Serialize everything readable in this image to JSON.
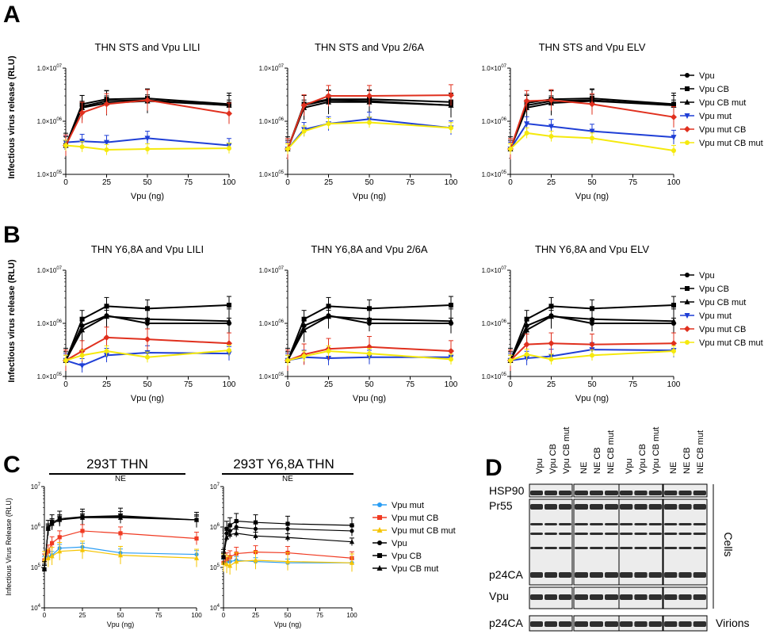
{
  "panels": {
    "A": {
      "letter": "A",
      "ylabel": "Infectious virus release (RLU)",
      "yticks": [
        "1.0×10⁰⁵",
        "1.0×10⁰⁶",
        "1.0×10⁰⁷"
      ],
      "legend": [
        "Vpu",
        "Vpu CB",
        "Vpu CB mut",
        "Vpu mut",
        "Vpu mut CB",
        "Vpu mut CB mut"
      ]
    },
    "B": {
      "letter": "B",
      "ylabel": "Infectious virus release (RLU)",
      "legend": [
        "Vpu",
        "Vpu CB",
        "Vpu CB mut",
        "Vpu mut",
        "Vpu mut CB",
        "Vpu mut CB mut"
      ]
    },
    "C": {
      "letter": "C",
      "header_left": "293T THN",
      "header_right": "293T Y6,8A THN",
      "ne_label": "NE",
      "ylabel": "Infectious Virus Release (RLU)",
      "legend": [
        "Vpu mut",
        "Vpu mut CB",
        "Vpu mut CB mut",
        "Vpu",
        "Vpu CB",
        "Vpu CB mut"
      ]
    },
    "D": {
      "letter": "D",
      "lane_labels": [
        "Vpu",
        "Vpu CB",
        "Vpu CB mut",
        "NE",
        "NE CB",
        "NE CB mut",
        "Vpu",
        "Vpu CB",
        "Vpu CB mut",
        "NE",
        "NE CB",
        "NE CB mut"
      ],
      "row_labels": [
        "HSP90",
        "Pr55",
        "p24CA",
        "Vpu",
        "p24CA"
      ],
      "cells_label": "Cells",
      "virions_label": "Virions",
      "group_labels": [
        "293T THN",
        "293T Y6,8A"
      ]
    }
  },
  "chart_data": [
    {
      "id": "A1",
      "type": "line",
      "title": "THN STS and Vpu LILI",
      "xlabel": "Vpu (ng)",
      "ylabel": "Infectious virus release (RLU)",
      "yscale": "log",
      "ylim": [
        100000,
        10000000
      ],
      "xlim": [
        0,
        100
      ],
      "xticks": [
        0,
        25,
        50,
        75,
        100
      ],
      "yticklabels": [
        "1.0×10^05",
        "1.0×10^06",
        "1.0×10^07"
      ],
      "x": [
        0,
        10,
        25,
        50,
        100
      ],
      "series": [
        {
          "name": "Vpu",
          "color": "#000000",
          "marker": "circle",
          "values": [
            350000,
            1900000,
            2400000,
            2500000,
            2000000
          ]
        },
        {
          "name": "Vpu CB",
          "color": "#000000",
          "marker": "square",
          "values": [
            350000,
            2100000,
            2600000,
            2700000,
            2100000
          ]
        },
        {
          "name": "Vpu CB mut",
          "color": "#000000",
          "marker": "triangle",
          "values": [
            350000,
            1800000,
            2200000,
            2400000,
            2000000
          ]
        },
        {
          "name": "Vpu mut",
          "color": "#1f3fd6",
          "marker": "triangle-down",
          "values": [
            400000,
            420000,
            400000,
            480000,
            350000
          ]
        },
        {
          "name": "Vpu mut CB",
          "color": "#e0301e",
          "marker": "diamond",
          "values": [
            350000,
            1450000,
            2100000,
            2500000,
            1400000
          ]
        },
        {
          "name": "Vpu mut CB mut",
          "color": "#f5e90d",
          "marker": "circle",
          "values": [
            350000,
            330000,
            290000,
            300000,
            310000
          ]
        }
      ]
    },
    {
      "id": "A2",
      "type": "line",
      "title": "THN STS and Vpu 2/6A",
      "xlabel": "Vpu (ng)",
      "yscale": "log",
      "ylim": [
        100000,
        10000000
      ],
      "xlim": [
        0,
        100
      ],
      "xticks": [
        0,
        25,
        50,
        75,
        100
      ],
      "yticklabels": [
        "1.0×10^05",
        "1.0×10^06",
        "1.0×10^07"
      ],
      "x": [
        0,
        10,
        25,
        50,
        100
      ],
      "series": [
        {
          "name": "Vpu",
          "color": "#000000",
          "marker": "circle",
          "values": [
            300000,
            2000000,
            2500000,
            2400000,
            2000000
          ]
        },
        {
          "name": "Vpu CB",
          "color": "#000000",
          "marker": "square",
          "values": [
            300000,
            2100000,
            2600000,
            2600000,
            2300000
          ]
        },
        {
          "name": "Vpu CB mut",
          "color": "#000000",
          "marker": "triangle",
          "values": [
            300000,
            1800000,
            2300000,
            2300000,
            2000000
          ]
        },
        {
          "name": "Vpu mut",
          "color": "#1f3fd6",
          "marker": "triangle-down",
          "values": [
            300000,
            700000,
            900000,
            1100000,
            750000
          ]
        },
        {
          "name": "Vpu mut CB",
          "color": "#e0301e",
          "marker": "diamond",
          "values": [
            300000,
            2000000,
            3000000,
            3000000,
            3100000
          ]
        },
        {
          "name": "Vpu mut CB mut",
          "color": "#f5e90d",
          "marker": "circle",
          "values": [
            300000,
            650000,
            900000,
            950000,
            750000
          ]
        }
      ]
    },
    {
      "id": "A3",
      "type": "line",
      "title": "THN STS and Vpu ELV",
      "xlabel": "Vpu (ng)",
      "yscale": "log",
      "ylim": [
        100000,
        10000000
      ],
      "xlim": [
        0,
        100
      ],
      "xticks": [
        0,
        25,
        50,
        75,
        100
      ],
      "yticklabels": [
        "1.0×10^05",
        "1.0×10^06",
        "1.0×10^07"
      ],
      "x": [
        0,
        10,
        25,
        50,
        100
      ],
      "series": [
        {
          "name": "Vpu",
          "color": "#000000",
          "marker": "circle",
          "values": [
            300000,
            2000000,
            2400000,
            2500000,
            2000000
          ]
        },
        {
          "name": "Vpu CB",
          "color": "#000000",
          "marker": "square",
          "values": [
            300000,
            2200000,
            2600000,
            2700000,
            2100000
          ]
        },
        {
          "name": "Vpu CB mut",
          "color": "#000000",
          "marker": "triangle",
          "values": [
            300000,
            1800000,
            2200000,
            2400000,
            2000000
          ]
        },
        {
          "name": "Vpu mut",
          "color": "#1f3fd6",
          "marker": "triangle-down",
          "values": [
            300000,
            900000,
            800000,
            650000,
            500000
          ]
        },
        {
          "name": "Vpu mut CB",
          "color": "#e0301e",
          "marker": "diamond",
          "values": [
            300000,
            2400000,
            2500000,
            2100000,
            1200000
          ]
        },
        {
          "name": "Vpu mut CB mut",
          "color": "#f5e90d",
          "marker": "circle",
          "values": [
            300000,
            600000,
            520000,
            480000,
            280000
          ]
        }
      ]
    },
    {
      "id": "B1",
      "type": "line",
      "title": "THN Y6,8A and Vpu LILI",
      "xlabel": "Vpu (ng)",
      "ylabel": "Infectious virus release (RLU)",
      "yscale": "log",
      "ylim": [
        100000,
        10000000
      ],
      "xlim": [
        0,
        100
      ],
      "xticks": [
        0,
        25,
        50,
        75,
        100
      ],
      "yticklabels": [
        "1.0×10^05",
        "1.0×10^06",
        "1.0×10^07"
      ],
      "x": [
        0,
        10,
        25,
        50,
        100
      ],
      "series": [
        {
          "name": "Vpu",
          "color": "#000000",
          "marker": "circle",
          "values": [
            200000,
            900000,
            1400000,
            1000000,
            1000000
          ]
        },
        {
          "name": "Vpu CB",
          "color": "#000000",
          "marker": "square",
          "values": [
            200000,
            1200000,
            2100000,
            1900000,
            2200000
          ]
        },
        {
          "name": "Vpu CB mut",
          "color": "#000000",
          "marker": "triangle",
          "values": [
            200000,
            750000,
            1350000,
            1200000,
            1100000
          ]
        },
        {
          "name": "Vpu mut",
          "color": "#1f3fd6",
          "marker": "triangle-down",
          "values": [
            200000,
            160000,
            250000,
            280000,
            270000
          ]
        },
        {
          "name": "Vpu mut CB",
          "color": "#e0301e",
          "marker": "diamond",
          "values": [
            200000,
            300000,
            540000,
            500000,
            420000
          ]
        },
        {
          "name": "Vpu mut CB mut",
          "color": "#f5e90d",
          "marker": "circle",
          "values": [
            200000,
            250000,
            300000,
            230000,
            310000
          ]
        }
      ]
    },
    {
      "id": "B2",
      "type": "line",
      "title": "THN Y6,8A and Vpu 2/6A",
      "xlabel": "Vpu (ng)",
      "yscale": "log",
      "ylim": [
        100000,
        10000000
      ],
      "xlim": [
        0,
        100
      ],
      "xticks": [
        0,
        25,
        50,
        75,
        100
      ],
      "yticklabels": [
        "1.0×10^05",
        "1.0×10^06",
        "1.0×10^07"
      ],
      "x": [
        0,
        10,
        25,
        50,
        100
      ],
      "series": [
        {
          "name": "Vpu",
          "color": "#000000",
          "marker": "circle",
          "values": [
            200000,
            900000,
            1400000,
            1000000,
            1000000
          ]
        },
        {
          "name": "Vpu CB",
          "color": "#000000",
          "marker": "square",
          "values": [
            200000,
            1200000,
            2100000,
            1900000,
            2200000
          ]
        },
        {
          "name": "Vpu CB mut",
          "color": "#000000",
          "marker": "triangle",
          "values": [
            200000,
            750000,
            1350000,
            1200000,
            1100000
          ]
        },
        {
          "name": "Vpu mut",
          "color": "#1f3fd6",
          "marker": "triangle-down",
          "values": [
            200000,
            230000,
            220000,
            230000,
            230000
          ]
        },
        {
          "name": "Vpu mut CB",
          "color": "#e0301e",
          "marker": "diamond",
          "values": [
            200000,
            260000,
            330000,
            360000,
            300000
          ]
        },
        {
          "name": "Vpu mut CB mut",
          "color": "#f5e90d",
          "marker": "circle",
          "values": [
            200000,
            240000,
            300000,
            270000,
            210000
          ]
        }
      ]
    },
    {
      "id": "B3",
      "type": "line",
      "title": "THN Y6,8A and Vpu ELV",
      "xlabel": "Vpu (ng)",
      "yscale": "log",
      "ylim": [
        100000,
        10000000
      ],
      "xlim": [
        0,
        100
      ],
      "xticks": [
        0,
        25,
        50,
        75,
        100
      ],
      "yticklabels": [
        "1.0×10^05",
        "1.0×10^06",
        "1.0×10^07"
      ],
      "x": [
        0,
        10,
        25,
        50,
        100
      ],
      "series": [
        {
          "name": "Vpu",
          "color": "#000000",
          "marker": "circle",
          "values": [
            200000,
            900000,
            1400000,
            1000000,
            1000000
          ]
        },
        {
          "name": "Vpu CB",
          "color": "#000000",
          "marker": "square",
          "values": [
            200000,
            1200000,
            2100000,
            1900000,
            2200000
          ]
        },
        {
          "name": "Vpu CB mut",
          "color": "#000000",
          "marker": "triangle",
          "values": [
            200000,
            750000,
            1350000,
            1200000,
            1100000
          ]
        },
        {
          "name": "Vpu mut",
          "color": "#1f3fd6",
          "marker": "triangle-down",
          "values": [
            200000,
            220000,
            240000,
            320000,
            310000
          ]
        },
        {
          "name": "Vpu mut CB",
          "color": "#e0301e",
          "marker": "diamond",
          "values": [
            200000,
            400000,
            420000,
            400000,
            420000
          ]
        },
        {
          "name": "Vpu mut CB mut",
          "color": "#f5e90d",
          "marker": "circle",
          "values": [
            200000,
            260000,
            210000,
            250000,
            300000
          ]
        }
      ]
    },
    {
      "id": "C1",
      "type": "line",
      "title": "NE",
      "xlabel": "Vpu (ng)",
      "ylabel": "Infectious Virus Release (RLU)",
      "yscale": "log",
      "ylim": [
        10000,
        10000000
      ],
      "xlim": [
        0,
        100
      ],
      "xticks": [
        0,
        25,
        50,
        75,
        100
      ],
      "yticklabels": [
        "10^4",
        "10^5",
        "10^6",
        "10^7"
      ],
      "x": [
        0,
        2.5,
        5,
        10,
        25,
        50,
        100
      ],
      "series": [
        {
          "name": "Vpu mut",
          "color": "#2a9df4",
          "marker": "circle",
          "values": [
            150000,
            180000,
            200000,
            300000,
            320000,
            230000,
            210000
          ]
        },
        {
          "name": "Vpu mut CB",
          "color": "#f03a22",
          "marker": "square",
          "values": [
            150000,
            250000,
            400000,
            560000,
            800000,
            700000,
            520000
          ]
        },
        {
          "name": "Vpu mut CB mut",
          "color": "#f5c400",
          "marker": "triangle",
          "values": [
            150000,
            170000,
            190000,
            250000,
            270000,
            200000,
            170000
          ]
        },
        {
          "name": "Vpu",
          "color": "#000000",
          "marker": "circle",
          "values": [
            90000,
            900000,
            1200000,
            1500000,
            1800000,
            1800000,
            1500000
          ]
        },
        {
          "name": "Vpu CB",
          "color": "#000000",
          "marker": "square",
          "values": [
            90000,
            950000,
            1300000,
            1600000,
            1800000,
            1900000,
            1500000
          ]
        },
        {
          "name": "Vpu CB mut",
          "color": "#000000",
          "marker": "triangle",
          "values": [
            90000,
            900000,
            1200000,
            1500000,
            1700000,
            1700000,
            1500000
          ]
        }
      ]
    },
    {
      "id": "C2",
      "type": "line",
      "title": "NE",
      "xlabel": "Vpu (ng)",
      "yscale": "log",
      "ylim": [
        10000,
        10000000
      ],
      "xlim": [
        0,
        100
      ],
      "xticks": [
        0,
        25,
        50,
        75,
        100
      ],
      "yticklabels": [
        "10^4",
        "10^5",
        "10^6",
        "10^7"
      ],
      "x": [
        0,
        2.5,
        5,
        10,
        25,
        50,
        100
      ],
      "series": [
        {
          "name": "Vpu mut",
          "color": "#2a9df4",
          "marker": "circle",
          "values": [
            130000,
            140000,
            140000,
            150000,
            140000,
            130000,
            130000
          ]
        },
        {
          "name": "Vpu mut CB",
          "color": "#f03a22",
          "marker": "square",
          "values": [
            130000,
            160000,
            180000,
            220000,
            240000,
            230000,
            170000
          ]
        },
        {
          "name": "Vpu mut CB mut",
          "color": "#f5c400",
          "marker": "triangle",
          "values": [
            130000,
            120000,
            110000,
            140000,
            150000,
            140000,
            130000
          ]
        },
        {
          "name": "Vpu",
          "color": "#000000",
          "marker": "circle",
          "values": [
            180000,
            700000,
            800000,
            1000000,
            900000,
            900000,
            800000
          ]
        },
        {
          "name": "Vpu CB",
          "color": "#000000",
          "marker": "square",
          "values": [
            180000,
            900000,
            1100000,
            1400000,
            1300000,
            1200000,
            1100000
          ]
        },
        {
          "name": "Vpu CB mut",
          "color": "#000000",
          "marker": "triangle",
          "values": [
            180000,
            550000,
            650000,
            700000,
            600000,
            550000,
            430000
          ]
        }
      ]
    }
  ]
}
